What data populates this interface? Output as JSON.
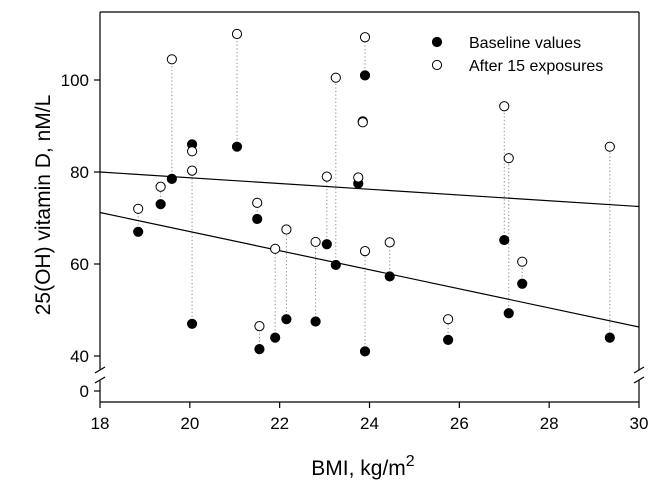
{
  "chart_data": {
    "type": "scatter",
    "title": "",
    "xlabel": "BMI, kg/m",
    "xlabel_superscript": "2",
    "ylabel": "25(OH) vitamin D, nM/L",
    "xlim": [
      18,
      30
    ],
    "ylim": [
      0,
      115
    ],
    "y_axis_break": true,
    "x_ticks": [
      "18",
      "20",
      "22",
      "24",
      "26",
      "28",
      "30"
    ],
    "y_ticks": [
      "0",
      "40",
      "60",
      "80",
      "100"
    ],
    "grid": false,
    "legend_position": "top-right",
    "colors": {
      "axis": "#000000",
      "baseline_fill": "#000000",
      "after_fill": "#ffffff",
      "connector": "#888888"
    },
    "series": [
      {
        "name": "Baseline values",
        "marker": "filled-circle",
        "points": [
          {
            "x": 18.85,
            "y": 67.0
          },
          {
            "x": 19.35,
            "y": 73.0
          },
          {
            "x": 19.6,
            "y": 78.5
          },
          {
            "x": 20.05,
            "y": 86.0
          },
          {
            "x": 20.05,
            "y": 47.0
          },
          {
            "x": 21.05,
            "y": 85.5
          },
          {
            "x": 21.5,
            "y": 69.8
          },
          {
            "x": 21.55,
            "y": 41.5
          },
          {
            "x": 21.9,
            "y": 44.0
          },
          {
            "x": 22.15,
            "y": 48.0
          },
          {
            "x": 22.8,
            "y": 47.5
          },
          {
            "x": 23.05,
            "y": 64.3
          },
          {
            "x": 23.25,
            "y": 59.8
          },
          {
            "x": 23.75,
            "y": 77.5
          },
          {
            "x": 23.85,
            "y": 91.0
          },
          {
            "x": 23.9,
            "y": 101.0
          },
          {
            "x": 23.9,
            "y": 41.0
          },
          {
            "x": 24.45,
            "y": 57.3
          },
          {
            "x": 25.75,
            "y": 43.5
          },
          {
            "x": 27.0,
            "y": 65.2
          },
          {
            "x": 27.1,
            "y": 49.3
          },
          {
            "x": 27.4,
            "y": 55.7
          },
          {
            "x": 29.35,
            "y": 44.0
          }
        ]
      },
      {
        "name": "After 15 exposures",
        "marker": "open-circle",
        "points": [
          {
            "x": 18.85,
            "y": 72.0
          },
          {
            "x": 19.35,
            "y": 76.8
          },
          {
            "x": 19.6,
            "y": 104.5
          },
          {
            "x": 20.05,
            "y": 84.5
          },
          {
            "x": 20.05,
            "y": 80.3
          },
          {
            "x": 21.05,
            "y": 110.0
          },
          {
            "x": 21.5,
            "y": 73.3
          },
          {
            "x": 21.55,
            "y": 46.5
          },
          {
            "x": 21.9,
            "y": 63.3
          },
          {
            "x": 22.15,
            "y": 67.5
          },
          {
            "x": 22.8,
            "y": 64.8
          },
          {
            "x": 23.05,
            "y": 79.0
          },
          {
            "x": 23.25,
            "y": 100.5
          },
          {
            "x": 23.75,
            "y": 78.8
          },
          {
            "x": 23.85,
            "y": 90.8
          },
          {
            "x": 23.9,
            "y": 109.3
          },
          {
            "x": 23.9,
            "y": 62.8
          },
          {
            "x": 24.45,
            "y": 64.7
          },
          {
            "x": 25.75,
            "y": 48.0
          },
          {
            "x": 27.0,
            "y": 94.3
          },
          {
            "x": 27.1,
            "y": 83.0
          },
          {
            "x": 27.4,
            "y": 60.5
          },
          {
            "x": 29.35,
            "y": 85.5
          }
        ]
      }
    ],
    "regression_lines": [
      {
        "for_series": "Baseline values",
        "x": [
          18,
          30
        ],
        "y": [
          71.2,
          46.3
        ]
      },
      {
        "for_series": "After 15 exposures",
        "x": [
          18,
          30
        ],
        "y": [
          80.0,
          72.5
        ]
      }
    ]
  }
}
